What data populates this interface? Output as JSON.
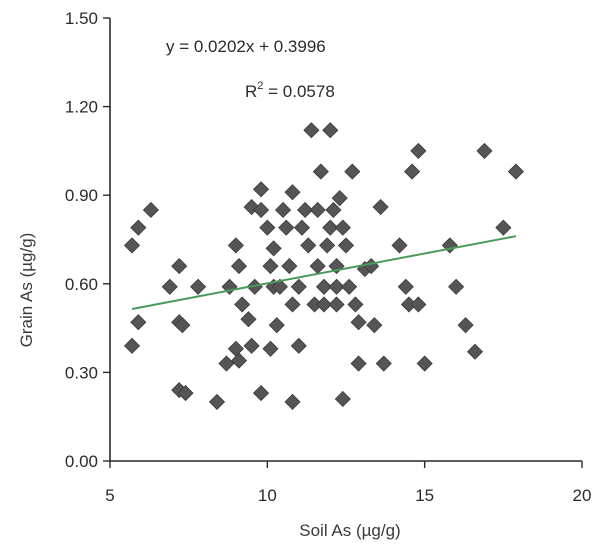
{
  "chart_data": {
    "type": "scatter",
    "title": "",
    "xlabel": "Soil As (µg/g)",
    "ylabel": "Grain As (µg/g)",
    "xlim": [
      5,
      20
    ],
    "ylim": [
      0,
      1.5
    ],
    "xticks": [
      5,
      10,
      15,
      20
    ],
    "xtick_labels": [
      "5",
      "10",
      "15",
      "20"
    ],
    "yticks": [
      0,
      0.3,
      0.6,
      0.9,
      1.2,
      1.5
    ],
    "ytick_labels": [
      "0.00",
      "0.30",
      "0.60",
      "0.90",
      "1.20",
      "1.50"
    ],
    "grid": false,
    "legend": "none",
    "marker": "diamond",
    "colors": {
      "points": "#555555",
      "trendline": "#4a9a5a",
      "axis": "#2a2a2a"
    },
    "annotations": {
      "equation": "y = 0.0202x + 0.3996",
      "r2_label": "R",
      "r2_sup": "2",
      "r2_value": " = 0.0578"
    },
    "trendline": {
      "slope": 0.0202,
      "intercept": 0.3996,
      "x_range": [
        5.7,
        17.9
      ]
    },
    "points": [
      [
        5.7,
        0.73
      ],
      [
        5.7,
        0.39
      ],
      [
        5.9,
        0.79
      ],
      [
        5.9,
        0.47
      ],
      [
        6.3,
        0.85
      ],
      [
        6.9,
        0.59
      ],
      [
        7.2,
        0.66
      ],
      [
        7.2,
        0.47
      ],
      [
        7.3,
        0.46
      ],
      [
        7.2,
        0.24
      ],
      [
        7.4,
        0.23
      ],
      [
        7.8,
        0.59
      ],
      [
        8.4,
        0.2
      ],
      [
        8.7,
        0.33
      ],
      [
        8.8,
        0.59
      ],
      [
        9.0,
        0.73
      ],
      [
        9.1,
        0.66
      ],
      [
        9.0,
        0.38
      ],
      [
        9.1,
        0.34
      ],
      [
        9.2,
        0.53
      ],
      [
        9.4,
        0.48
      ],
      [
        9.5,
        0.39
      ],
      [
        9.5,
        0.86
      ],
      [
        9.6,
        0.59
      ],
      [
        9.8,
        0.92
      ],
      [
        9.8,
        0.85
      ],
      [
        9.8,
        0.23
      ],
      [
        10.0,
        0.79
      ],
      [
        10.1,
        0.66
      ],
      [
        10.1,
        0.38
      ],
      [
        10.2,
        0.72
      ],
      [
        10.2,
        0.59
      ],
      [
        10.3,
        0.46
      ],
      [
        10.4,
        0.59
      ],
      [
        10.5,
        0.85
      ],
      [
        10.6,
        0.79
      ],
      [
        10.7,
        0.66
      ],
      [
        10.8,
        0.91
      ],
      [
        10.8,
        0.53
      ],
      [
        10.8,
        0.2
      ],
      [
        11.0,
        0.59
      ],
      [
        11.0,
        0.39
      ],
      [
        11.1,
        0.79
      ],
      [
        11.2,
        0.85
      ],
      [
        11.3,
        0.73
      ],
      [
        11.4,
        1.12
      ],
      [
        11.5,
        0.53
      ],
      [
        11.6,
        0.66
      ],
      [
        11.6,
        0.85
      ],
      [
        11.7,
        0.98
      ],
      [
        11.8,
        0.59
      ],
      [
        11.8,
        0.53
      ],
      [
        11.9,
        0.73
      ],
      [
        12.0,
        1.12
      ],
      [
        12.0,
        0.79
      ],
      [
        12.1,
        0.85
      ],
      [
        12.2,
        0.66
      ],
      [
        12.2,
        0.59
      ],
      [
        12.2,
        0.53
      ],
      [
        12.3,
        0.89
      ],
      [
        12.4,
        0.79
      ],
      [
        12.4,
        0.21
      ],
      [
        12.5,
        0.73
      ],
      [
        12.6,
        0.59
      ],
      [
        12.7,
        0.98
      ],
      [
        12.8,
        0.53
      ],
      [
        12.9,
        0.47
      ],
      [
        12.9,
        0.33
      ],
      [
        13.1,
        0.65
      ],
      [
        13.3,
        0.66
      ],
      [
        13.4,
        0.46
      ],
      [
        13.6,
        0.86
      ],
      [
        13.7,
        0.33
      ],
      [
        14.2,
        0.73
      ],
      [
        14.4,
        0.59
      ],
      [
        14.5,
        0.53
      ],
      [
        14.6,
        0.98
      ],
      [
        14.8,
        1.05
      ],
      [
        14.8,
        0.53
      ],
      [
        15.0,
        0.33
      ],
      [
        15.8,
        0.73
      ],
      [
        16.0,
        0.59
      ],
      [
        16.3,
        0.46
      ],
      [
        16.6,
        0.37
      ],
      [
        16.9,
        1.05
      ],
      [
        17.5,
        0.79
      ],
      [
        17.9,
        0.98
      ]
    ]
  }
}
